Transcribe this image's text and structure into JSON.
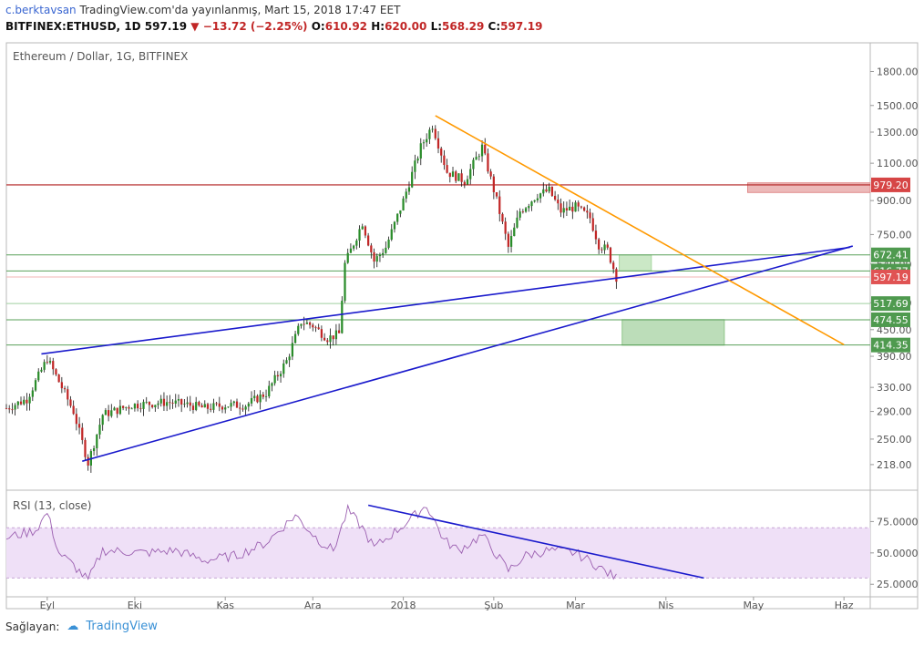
{
  "header": {
    "user": "c.berktavsan",
    "published": "TradingView.com'da yayınlanmış, Mart 15, 2018 17:47 EET",
    "symbol": "BITFINEX:ETHUSD, 1D",
    "last": "597.19",
    "change": "−13.72 (−2.25%)",
    "o_label": "O:",
    "o": "610.92",
    "h_label": "H:",
    "h": "620.00",
    "l_label": "L:",
    "l": "568.29",
    "c_label": "C:",
    "c": "597.19"
  },
  "footer": {
    "label": "Sağlayan:",
    "brand": "TradingView"
  },
  "colors": {
    "up": "#2a8c2a",
    "down": "#c12727",
    "trend": "#1a1acc",
    "orange": "#ff9900",
    "rsi": "#9b5fb0"
  },
  "chart_data": {
    "type": "candlestick",
    "title": "Ethereum / Dollar, 1G, BITFINEX",
    "y_scale": "log",
    "ylim": [
      190,
      2100
    ],
    "y_ticks": [
      218,
      250,
      290,
      330,
      390,
      450,
      520,
      640,
      750,
      900,
      1100,
      1300,
      1500,
      1800
    ],
    "y_tick_labels": [
      "218.00",
      "250.00",
      "290.00",
      "330.00",
      "390.00",
      "450.00",
      "520.00",
      "640.00",
      "750.00",
      "900.00",
      "1100.00",
      "1300.00",
      "1500.00",
      "1800.00"
    ],
    "x_start": "2017-08-18",
    "x_end": "2018-06-10",
    "x_ticks": [
      {
        "date": "2017-09-01",
        "label": "Eyl"
      },
      {
        "date": "2017-10-01",
        "label": "Eki"
      },
      {
        "date": "2017-11-01",
        "label": "Kas"
      },
      {
        "date": "2017-12-01",
        "label": "Ara"
      },
      {
        "date": "2018-01-01",
        "label": "2018"
      },
      {
        "date": "2018-02-01",
        "label": "Şub"
      },
      {
        "date": "2018-03-01",
        "label": "Mar"
      },
      {
        "date": "2018-04-01",
        "label": "Nis"
      },
      {
        "date": "2018-05-01",
        "label": "May"
      },
      {
        "date": "2018-06-01",
        "label": "Haz"
      }
    ],
    "price_keypoints": [
      {
        "date": "2017-08-18",
        "price": 295
      },
      {
        "date": "2017-08-25",
        "price": 310
      },
      {
        "date": "2017-09-01",
        "price": 385
      },
      {
        "date": "2017-09-06",
        "price": 330
      },
      {
        "date": "2017-09-10",
        "price": 290
      },
      {
        "date": "2017-09-15",
        "price": 220
      },
      {
        "date": "2017-09-20",
        "price": 285
      },
      {
        "date": "2017-09-30",
        "price": 300
      },
      {
        "date": "2017-10-12",
        "price": 305
      },
      {
        "date": "2017-10-20",
        "price": 300
      },
      {
        "date": "2017-10-25",
        "price": 295
      },
      {
        "date": "2017-11-01",
        "price": 300
      },
      {
        "date": "2017-11-08",
        "price": 300
      },
      {
        "date": "2017-11-15",
        "price": 320
      },
      {
        "date": "2017-11-22",
        "price": 380
      },
      {
        "date": "2017-11-27",
        "price": 470
      },
      {
        "date": "2017-12-01",
        "price": 460
      },
      {
        "date": "2017-12-06",
        "price": 430
      },
      {
        "date": "2017-12-10",
        "price": 440
      },
      {
        "date": "2017-12-12",
        "price": 640
      },
      {
        "date": "2017-12-18",
        "price": 800
      },
      {
        "date": "2017-12-22",
        "price": 650
      },
      {
        "date": "2017-12-26",
        "price": 700
      },
      {
        "date": "2018-01-01",
        "price": 900
      },
      {
        "date": "2018-01-07",
        "price": 1200
      },
      {
        "date": "2018-01-11",
        "price": 1350
      },
      {
        "date": "2018-01-16",
        "price": 1050
      },
      {
        "date": "2018-01-22",
        "price": 1000
      },
      {
        "date": "2018-01-28",
        "price": 1200
      },
      {
        "date": "2018-02-02",
        "price": 900
      },
      {
        "date": "2018-02-06",
        "price": 700
      },
      {
        "date": "2018-02-10",
        "price": 850
      },
      {
        "date": "2018-02-16",
        "price": 930
      },
      {
        "date": "2018-02-20",
        "price": 950
      },
      {
        "date": "2018-02-24",
        "price": 850
      },
      {
        "date": "2018-03-01",
        "price": 870
      },
      {
        "date": "2018-03-06",
        "price": 820
      },
      {
        "date": "2018-03-09",
        "price": 710
      },
      {
        "date": "2018-03-12",
        "price": 690
      },
      {
        "date": "2018-03-15",
        "price": 597
      }
    ],
    "h_levels": [
      {
        "value": 979.2,
        "label": "979.20",
        "color": "#b22222",
        "box": "#d64545",
        "lw": 1.2
      },
      {
        "value": 672.41,
        "label": "672.41",
        "color": "#5aa05a",
        "box": "#4f9a4f",
        "lw": 1
      },
      {
        "value": 616.77,
        "label": "616.77",
        "color": "#5aa05a",
        "box": "#4f9a4f",
        "lw": 1
      },
      {
        "value": 597.19,
        "label": "597.19",
        "color": "#f3b4b4",
        "box": "#e05353",
        "lw": 1
      },
      {
        "value": 517.69,
        "label": "517.69",
        "color": "#9fcf9f",
        "box": "#4f9a4f",
        "lw": 1
      },
      {
        "value": 474.55,
        "label": "474.55",
        "color": "#5aa05a",
        "box": "#4f9a4f",
        "lw": 1
      },
      {
        "value": 414.35,
        "label": "414.35",
        "color": "#5aa05a",
        "box": "#4f9a4f",
        "lw": 1
      }
    ],
    "trendlines": [
      {
        "color": "#1a1acc",
        "from": {
          "date": "2017-08-30",
          "price": 395
        },
        "to": {
          "date": "2018-06-03",
          "price": 700
        }
      },
      {
        "color": "#1a1acc",
        "from": {
          "date": "2017-09-13",
          "price": 222
        },
        "to": {
          "date": "2018-06-04",
          "price": 705
        }
      },
      {
        "color": "#ff9900",
        "from": {
          "date": "2018-01-12",
          "price": 1420
        },
        "to": {
          "date": "2018-06-01",
          "price": 415
        }
      }
    ],
    "zones": [
      {
        "color": "#e08a8a",
        "x0": "2018-04-29",
        "x1": "2018-06-10",
        "y0": 940,
        "y1": 990,
        "opacity": 0.6
      },
      {
        "color": "#a8d8a0",
        "x0": "2018-03-16",
        "x1": "2018-03-27",
        "y0": 617,
        "y1": 672,
        "opacity": 0.6
      },
      {
        "color": "#8fc68a",
        "x0": "2018-03-17",
        "x1": "2018-04-21",
        "y0": 414,
        "y1": 475,
        "opacity": 0.6
      }
    ],
    "rsi": {
      "label": "RSI (13, close)",
      "ylim": [
        15,
        100
      ],
      "band": [
        30,
        70
      ],
      "y_ticks": [
        25,
        50,
        75
      ],
      "y_tick_labels": [
        "25.0000",
        "50.0000",
        "75.0000"
      ],
      "keypoints": [
        {
          "date": "2017-08-18",
          "v": 62
        },
        {
          "date": "2017-08-28",
          "v": 68
        },
        {
          "date": "2017-09-01",
          "v": 82
        },
        {
          "date": "2017-09-05",
          "v": 50
        },
        {
          "date": "2017-09-10",
          "v": 40
        },
        {
          "date": "2017-09-15",
          "v": 28
        },
        {
          "date": "2017-09-20",
          "v": 52
        },
        {
          "date": "2017-10-05",
          "v": 50
        },
        {
          "date": "2017-10-15",
          "v": 52
        },
        {
          "date": "2017-10-25",
          "v": 44
        },
        {
          "date": "2017-11-05",
          "v": 48
        },
        {
          "date": "2017-11-15",
          "v": 58
        },
        {
          "date": "2017-11-25",
          "v": 80
        },
        {
          "date": "2017-12-03",
          "v": 60
        },
        {
          "date": "2017-12-08",
          "v": 52
        },
        {
          "date": "2017-12-13",
          "v": 84
        },
        {
          "date": "2017-12-18",
          "v": 70
        },
        {
          "date": "2017-12-22",
          "v": 54
        },
        {
          "date": "2018-01-01",
          "v": 72
        },
        {
          "date": "2018-01-09",
          "v": 88
        },
        {
          "date": "2018-01-15",
          "v": 60
        },
        {
          "date": "2018-01-20",
          "v": 52
        },
        {
          "date": "2018-01-28",
          "v": 64
        },
        {
          "date": "2018-02-06",
          "v": 36
        },
        {
          "date": "2018-02-12",
          "v": 48
        },
        {
          "date": "2018-02-20",
          "v": 52
        },
        {
          "date": "2018-03-01",
          "v": 50
        },
        {
          "date": "2018-03-07",
          "v": 42
        },
        {
          "date": "2018-03-12",
          "v": 34
        },
        {
          "date": "2018-03-15",
          "v": 30
        }
      ],
      "trendline": {
        "from": {
          "date": "2017-12-20",
          "v": 88
        },
        "to": {
          "date": "2018-04-14",
          "v": 30
        }
      }
    }
  }
}
